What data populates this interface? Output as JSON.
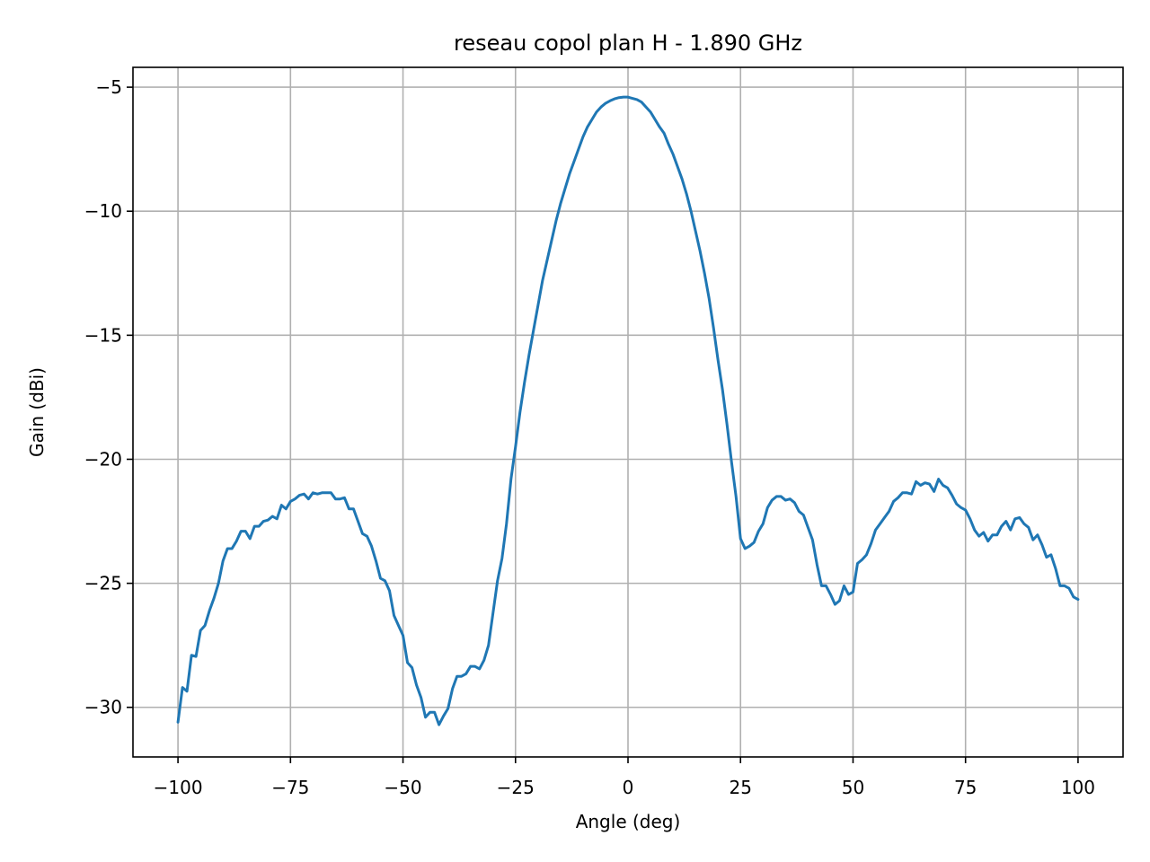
{
  "chart_data": {
    "type": "line",
    "title": "reseau copol plan H - 1.890 GHz",
    "xlabel": "Angle (deg)",
    "ylabel": "Gain (dBi)",
    "xlim": [
      -110,
      110
    ],
    "ylim": [
      -32,
      -4.2
    ],
    "xticks": [
      -100,
      -75,
      -50,
      -25,
      0,
      25,
      50,
      75,
      100
    ],
    "xtick_labels": [
      "−100",
      "−75",
      "−50",
      "−25",
      "0",
      "25",
      "50",
      "75",
      "100"
    ],
    "yticks": [
      -30,
      -25,
      -20,
      -15,
      -10,
      -5
    ],
    "ytick_labels": [
      "−30",
      "−25",
      "−20",
      "−15",
      "−10",
      "−5"
    ],
    "grid": true,
    "series": [
      {
        "color": "#1f77b4",
        "x": [
          -100,
          -99,
          -98,
          -97,
          -96,
          -95,
          -94,
          -93,
          -92,
          -91,
          -90,
          -89,
          -88,
          -87,
          -86,
          -85,
          -84,
          -83,
          -82,
          -81,
          -80,
          -79,
          -78,
          -77,
          -76,
          -75,
          -74,
          -73,
          -72,
          -71,
          -70,
          -69,
          -68,
          -67,
          -66,
          -65,
          -64,
          -63,
          -62,
          -61,
          -60,
          -59,
          -58,
          -57,
          -56,
          -55,
          -54,
          -53,
          -52,
          -51,
          -50,
          -49,
          -48,
          -47,
          -46,
          -45,
          -44,
          -43,
          -42,
          -41,
          -40,
          -39,
          -38,
          -37,
          -36,
          -35,
          -34,
          -33,
          -32,
          -31,
          -30,
          -29,
          -28,
          -27,
          -26,
          -25,
          -24,
          -23,
          -22,
          -21,
          -20,
          -19,
          -18,
          -17,
          -16,
          -15,
          -14,
          -13,
          -12,
          -11,
          -10,
          -9,
          -8,
          -7,
          -6,
          -5,
          -4,
          -3,
          -2,
          -1,
          0,
          1,
          2,
          3,
          4,
          5,
          6,
          7,
          8,
          9,
          10,
          11,
          12,
          13,
          14,
          15,
          16,
          17,
          18,
          19,
          20,
          21,
          22,
          23,
          24,
          25,
          26,
          27,
          28,
          29,
          30,
          31,
          32,
          33,
          34,
          35,
          36,
          37,
          38,
          39,
          40,
          41,
          42,
          43,
          44,
          45,
          46,
          47,
          48,
          49,
          50,
          51,
          52,
          53,
          54,
          55,
          56,
          57,
          58,
          59,
          60,
          61,
          62,
          63,
          64,
          65,
          66,
          67,
          68,
          69,
          70,
          71,
          72,
          73,
          74,
          75,
          76,
          77,
          78,
          79,
          80,
          81,
          82,
          83,
          84,
          85,
          86,
          87,
          88,
          89,
          90,
          91,
          92,
          93,
          94,
          95,
          96,
          97,
          98,
          99,
          100
        ],
        "y": [
          -30.6,
          -29.2,
          -29.35,
          -27.9,
          -27.95,
          -26.9,
          -26.7,
          -26.1,
          -25.6,
          -25.0,
          -24.1,
          -23.6,
          -23.6,
          -23.3,
          -22.9,
          -22.9,
          -23.2,
          -22.7,
          -22.7,
          -22.5,
          -22.45,
          -22.3,
          -22.4,
          -21.85,
          -22.0,
          -21.7,
          -21.6,
          -21.45,
          -21.4,
          -21.6,
          -21.35,
          -21.4,
          -21.35,
          -21.35,
          -21.35,
          -21.6,
          -21.6,
          -21.55,
          -22.0,
          -22.0,
          -22.5,
          -23.0,
          -23.1,
          -23.5,
          -24.1,
          -24.8,
          -24.9,
          -25.3,
          -26.3,
          -26.7,
          -27.1,
          -28.2,
          -28.4,
          -29.1,
          -29.6,
          -30.4,
          -30.2,
          -30.2,
          -30.7,
          -30.35,
          -30.05,
          -29.25,
          -28.75,
          -28.75,
          -28.65,
          -28.35,
          -28.35,
          -28.45,
          -28.1,
          -27.5,
          -26.2,
          -24.9,
          -24.0,
          -22.6,
          -20.8,
          -19.5,
          -18.1,
          -16.9,
          -15.8,
          -14.8,
          -13.8,
          -12.8,
          -12.0,
          -11.2,
          -10.4,
          -9.7,
          -9.1,
          -8.5,
          -8.0,
          -7.5,
          -7.0,
          -6.6,
          -6.3,
          -6.0,
          -5.8,
          -5.65,
          -5.55,
          -5.47,
          -5.42,
          -5.4,
          -5.4,
          -5.45,
          -5.5,
          -5.6,
          -5.8,
          -6.0,
          -6.3,
          -6.6,
          -6.85,
          -7.3,
          -7.7,
          -8.2,
          -8.7,
          -9.3,
          -10.0,
          -10.8,
          -11.6,
          -12.5,
          -13.5,
          -14.7,
          -16.0,
          -17.2,
          -18.6,
          -20.1,
          -21.5,
          -23.2,
          -23.6,
          -23.5,
          -23.35,
          -22.9,
          -22.6,
          -21.95,
          -21.65,
          -21.5,
          -21.5,
          -21.65,
          -21.6,
          -21.75,
          -22.1,
          -22.25,
          -22.75,
          -23.25,
          -24.25,
          -25.1,
          -25.1,
          -25.45,
          -25.85,
          -25.7,
          -25.1,
          -25.45,
          -25.35,
          -24.2,
          -24.05,
          -23.85,
          -23.4,
          -22.85,
          -22.6,
          -22.35,
          -22.1,
          -21.7,
          -21.55,
          -21.35,
          -21.35,
          -21.4,
          -20.9,
          -21.05,
          -20.95,
          -21.0,
          -21.3,
          -20.8,
          -21.05,
          -21.15,
          -21.45,
          -21.8,
          -21.95,
          -22.05,
          -22.4,
          -22.85,
          -23.1,
          -22.95,
          -23.3,
          -23.05,
          -23.05,
          -22.7,
          -22.5,
          -22.85,
          -22.4,
          -22.35,
          -22.6,
          -22.75,
          -23.25,
          -23.05,
          -23.45,
          -23.95,
          -23.85,
          -24.4,
          -25.1,
          -25.1,
          -25.2,
          -25.55,
          -25.65
        ]
      }
    ]
  }
}
